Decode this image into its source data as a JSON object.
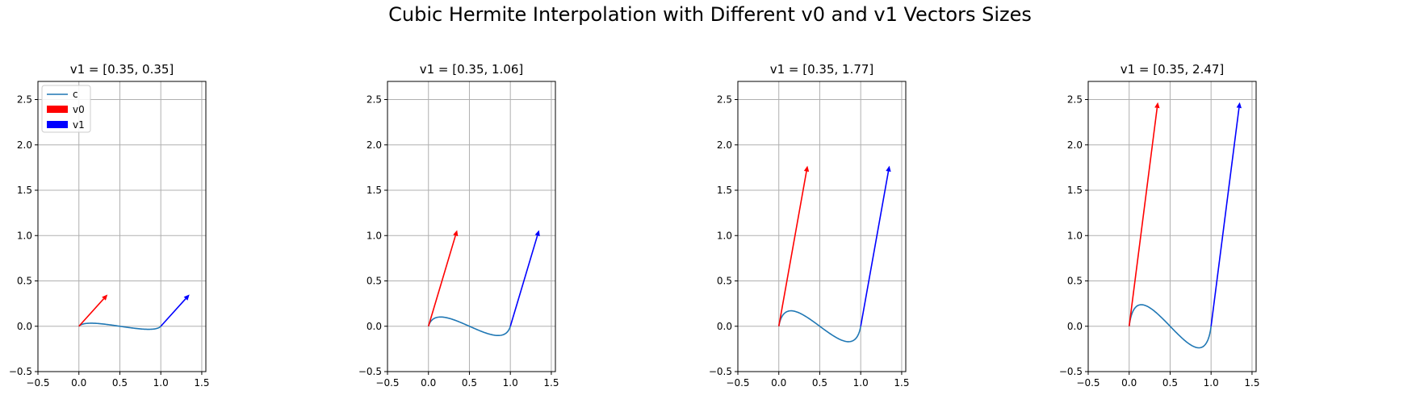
{
  "figure_title": "Cubic Hermite Interpolation with Different v0 and v1 Vectors Sizes",
  "colors": {
    "curve": "#1f77b4",
    "v0": "#ff0000",
    "v1": "#0000ff",
    "grid": "#b0b0b0"
  },
  "chart_data": [
    {
      "type": "line",
      "title": "v1 = [0.35, 0.35]",
      "xlim": [
        -0.5,
        1.55
      ],
      "ylim": [
        -0.5,
        2.7
      ],
      "xticks": [
        -0.5,
        0.0,
        0.5,
        1.0,
        1.5
      ],
      "xtick_labels": [
        "−0.5",
        "0.0",
        "0.5",
        "1.0",
        "1.5"
      ],
      "yticks": [
        -0.5,
        0.0,
        0.5,
        1.0,
        1.5,
        2.0,
        2.5
      ],
      "ytick_labels": [
        "−0.5",
        "0.0",
        "0.5",
        "1.0",
        "1.5",
        "2.0",
        "2.5"
      ],
      "grid": true,
      "legend": {
        "placement": "upper-left",
        "entries": [
          "c",
          "v0",
          "v1"
        ]
      },
      "p0": [
        0,
        0
      ],
      "p1": [
        1,
        0
      ],
      "v0": [
        0.35,
        0.35
      ],
      "v1": [
        0.35,
        0.35
      ]
    },
    {
      "type": "line",
      "title": "v1 = [0.35, 1.06]",
      "xlim": [
        -0.5,
        1.55
      ],
      "ylim": [
        -0.5,
        2.7
      ],
      "xticks": [
        -0.5,
        0.0,
        0.5,
        1.0,
        1.5
      ],
      "xtick_labels": [
        "−0.5",
        "0.0",
        "0.5",
        "1.0",
        "1.5"
      ],
      "yticks": [
        -0.5,
        0.0,
        0.5,
        1.0,
        1.5,
        2.0,
        2.5
      ],
      "ytick_labels": [
        "−0.5",
        "0.0",
        "0.5",
        "1.0",
        "1.5",
        "2.0",
        "2.5"
      ],
      "grid": true,
      "p0": [
        0,
        0
      ],
      "p1": [
        1,
        0
      ],
      "v0": [
        0.35,
        1.06
      ],
      "v1": [
        0.35,
        1.06
      ]
    },
    {
      "type": "line",
      "title": "v1 = [0.35, 1.77]",
      "xlim": [
        -0.5,
        1.55
      ],
      "ylim": [
        -0.5,
        2.7
      ],
      "xticks": [
        -0.5,
        0.0,
        0.5,
        1.0,
        1.5
      ],
      "xtick_labels": [
        "−0.5",
        "0.0",
        "0.5",
        "1.0",
        "1.5"
      ],
      "yticks": [
        -0.5,
        0.0,
        0.5,
        1.0,
        1.5,
        2.0,
        2.5
      ],
      "ytick_labels": [
        "−0.5",
        "0.0",
        "0.5",
        "1.0",
        "1.5",
        "2.0",
        "2.5"
      ],
      "grid": true,
      "p0": [
        0,
        0
      ],
      "p1": [
        1,
        0
      ],
      "v0": [
        0.35,
        1.77
      ],
      "v1": [
        0.35,
        1.77
      ]
    },
    {
      "type": "line",
      "title": "v1 = [0.35, 2.47]",
      "xlim": [
        -0.5,
        1.55
      ],
      "ylim": [
        -0.5,
        2.7
      ],
      "xticks": [
        -0.5,
        0.0,
        0.5,
        1.0,
        1.5
      ],
      "xtick_labels": [
        "−0.5",
        "0.0",
        "0.5",
        "1.0",
        "1.5"
      ],
      "yticks": [
        -0.5,
        0.0,
        0.5,
        1.0,
        1.5,
        2.0,
        2.5
      ],
      "ytick_labels": [
        "−0.5",
        "0.0",
        "0.5",
        "1.0",
        "1.5",
        "2.0",
        "2.5"
      ],
      "grid": true,
      "p0": [
        0,
        0
      ],
      "p1": [
        1,
        0
      ],
      "v0": [
        0.35,
        2.47
      ],
      "v1": [
        0.35,
        2.47
      ]
    }
  ]
}
